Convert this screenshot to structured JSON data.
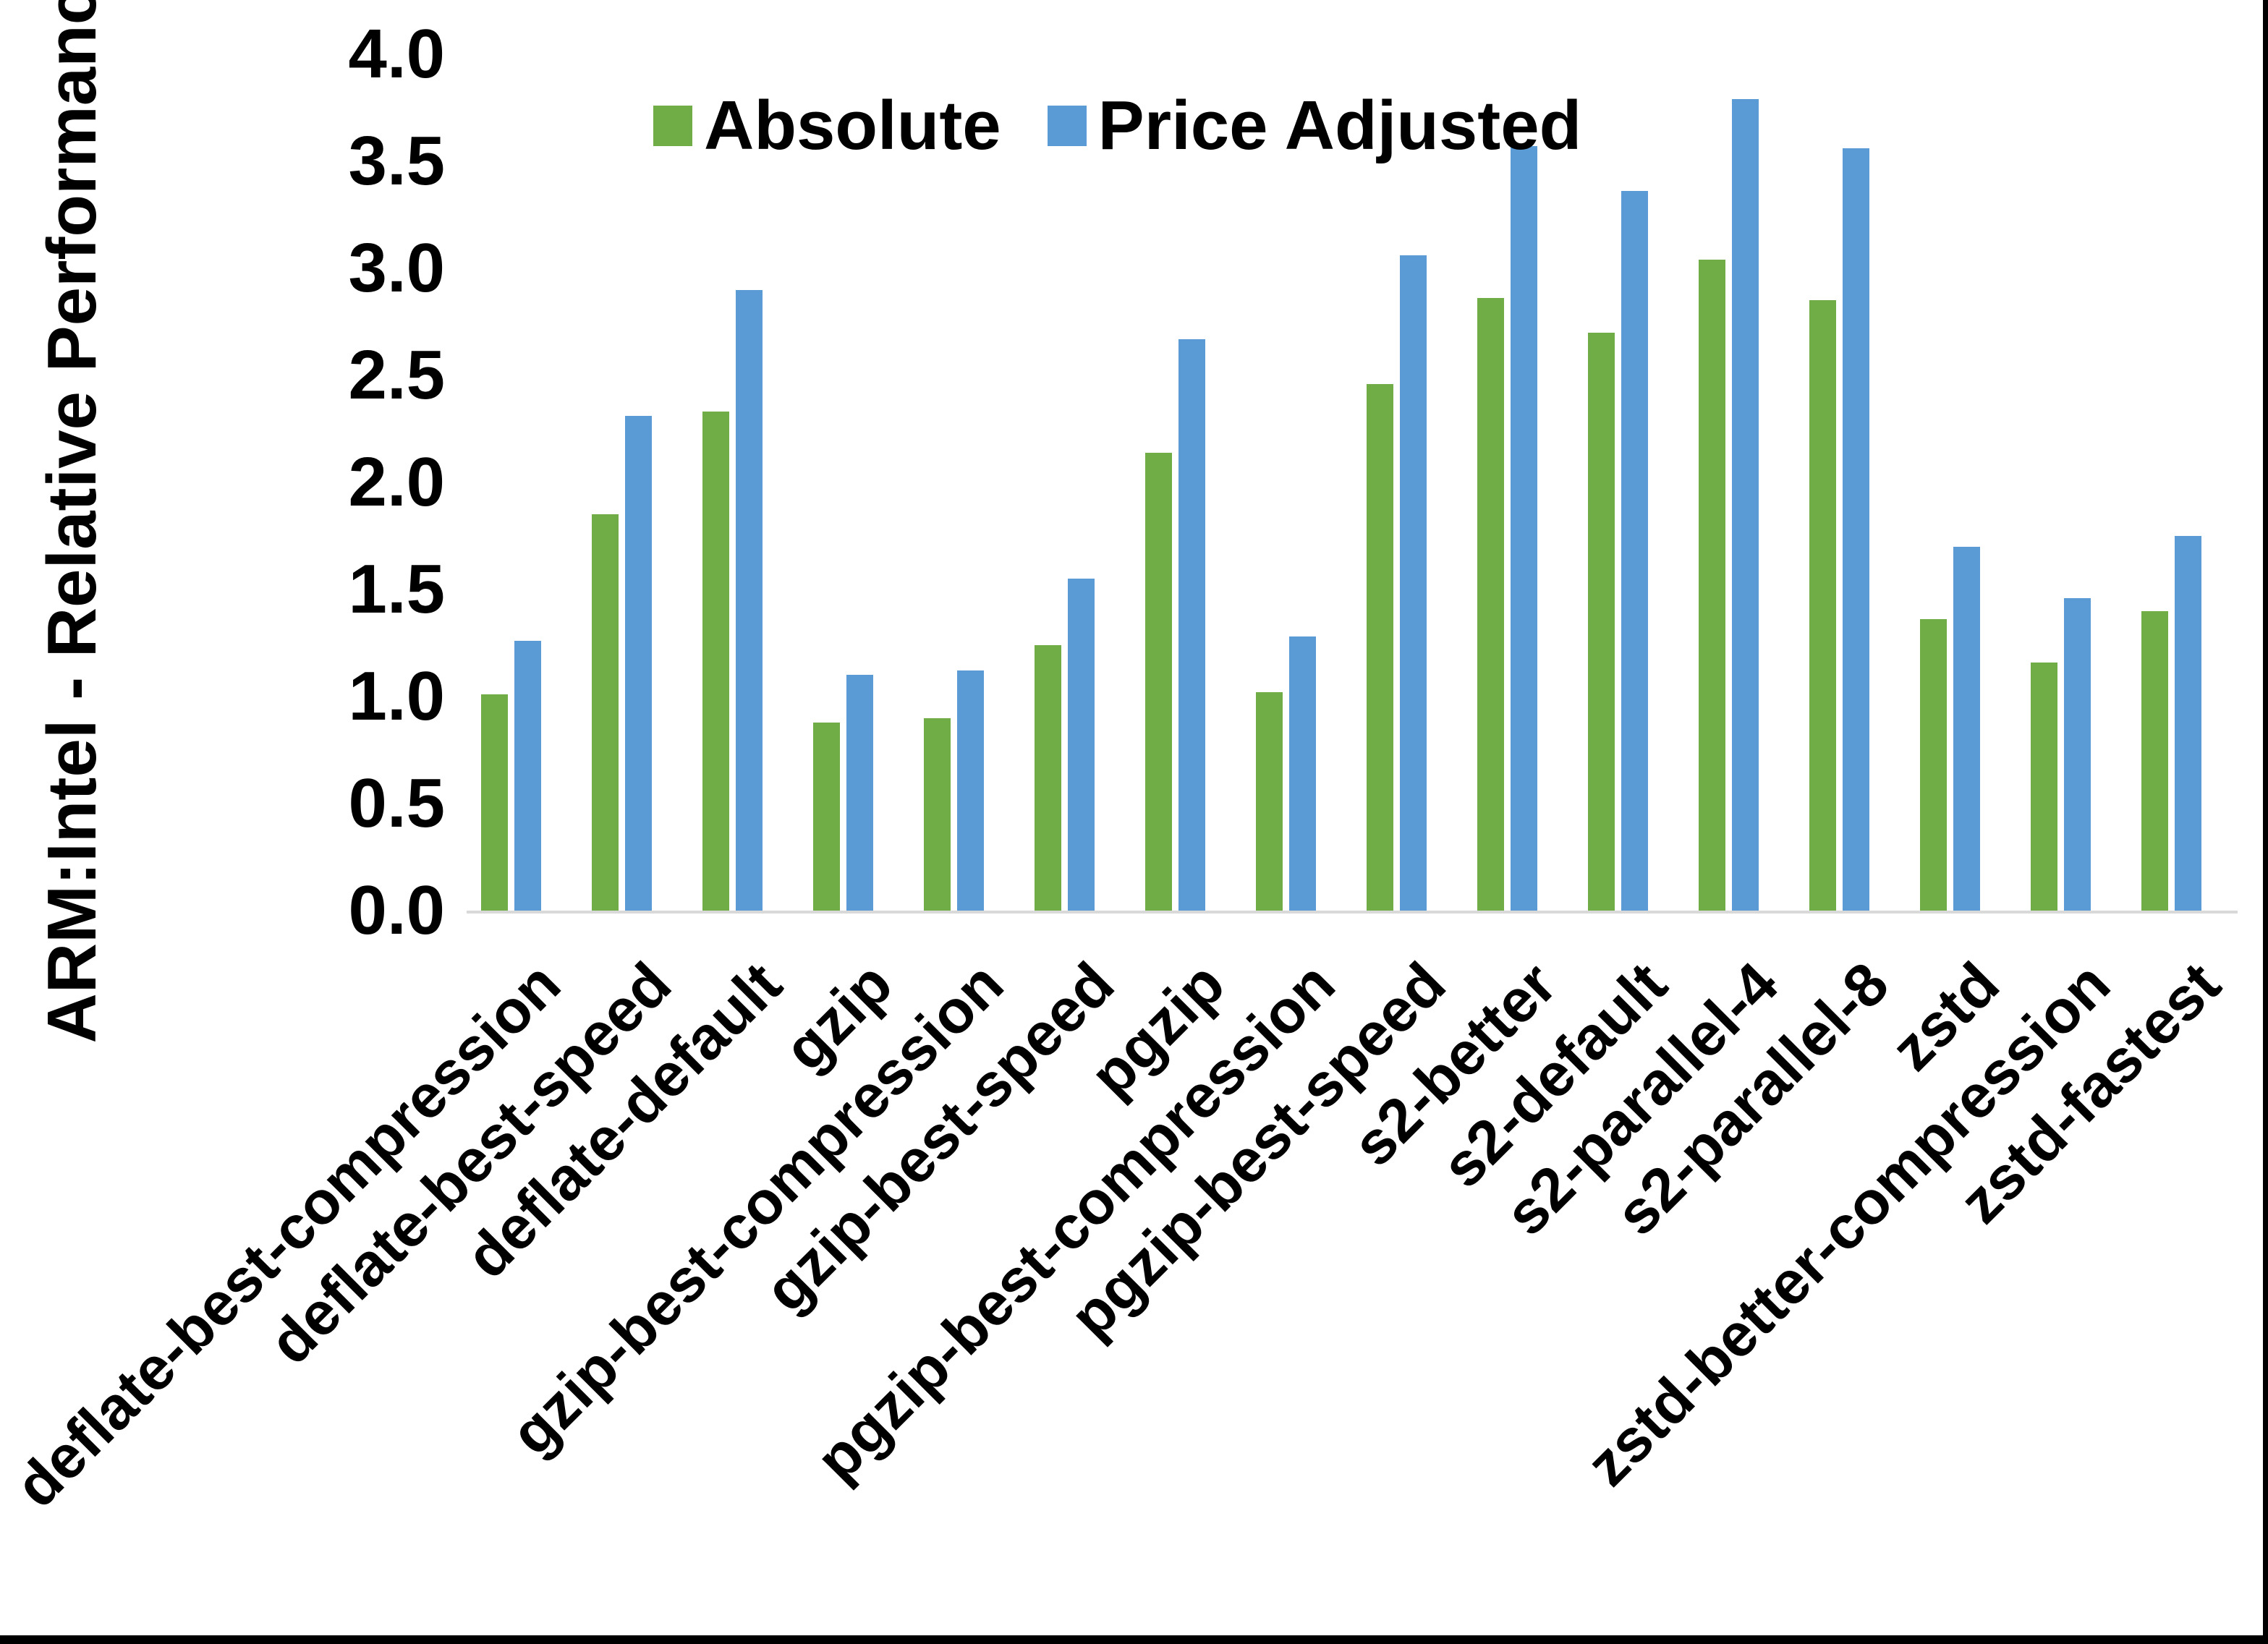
{
  "chart_data": {
    "type": "bar",
    "title": "",
    "xlabel": "",
    "ylabel": "ARM:Intel - Relative Performance",
    "ylim": [
      0.0,
      4.0
    ],
    "ytick_step": 0.5,
    "yticks": [
      "0.0",
      "0.5",
      "1.0",
      "1.5",
      "2.0",
      "2.5",
      "3.0",
      "3.5",
      "4.0"
    ],
    "grid": false,
    "legend_position": "top-center",
    "categories": [
      "deflate-best-compression",
      "deflate-best-speed",
      "deflate-default",
      "gzip",
      "gzip-best-compression",
      "gzip-best-speed",
      "pgzip",
      "pgzip-best-compression",
      "pgzip-best-speed",
      "s2-better",
      "s2-default",
      "s2-parallel-4",
      "s2-parallel-8",
      "zstd",
      "zstd-better-compression",
      "zstd-fastest"
    ],
    "series": [
      {
        "name": "Absolute",
        "color": "#70AD47",
        "values": [
          1.01,
          1.85,
          2.33,
          0.88,
          0.9,
          1.24,
          2.14,
          1.02,
          2.46,
          2.86,
          2.7,
          3.04,
          2.85,
          1.36,
          1.16,
          1.4
        ]
      },
      {
        "name": "Price Adjusted",
        "color": "#5B9BD5",
        "values": [
          1.26,
          2.31,
          2.9,
          1.1,
          1.12,
          1.55,
          2.67,
          1.28,
          3.06,
          3.57,
          3.36,
          3.79,
          3.56,
          1.7,
          1.46,
          1.75
        ]
      }
    ]
  },
  "colors": {
    "background": "#FFFFFF",
    "axis_line": "#D9D9D9",
    "text": "#000000",
    "frame": "#000000"
  }
}
